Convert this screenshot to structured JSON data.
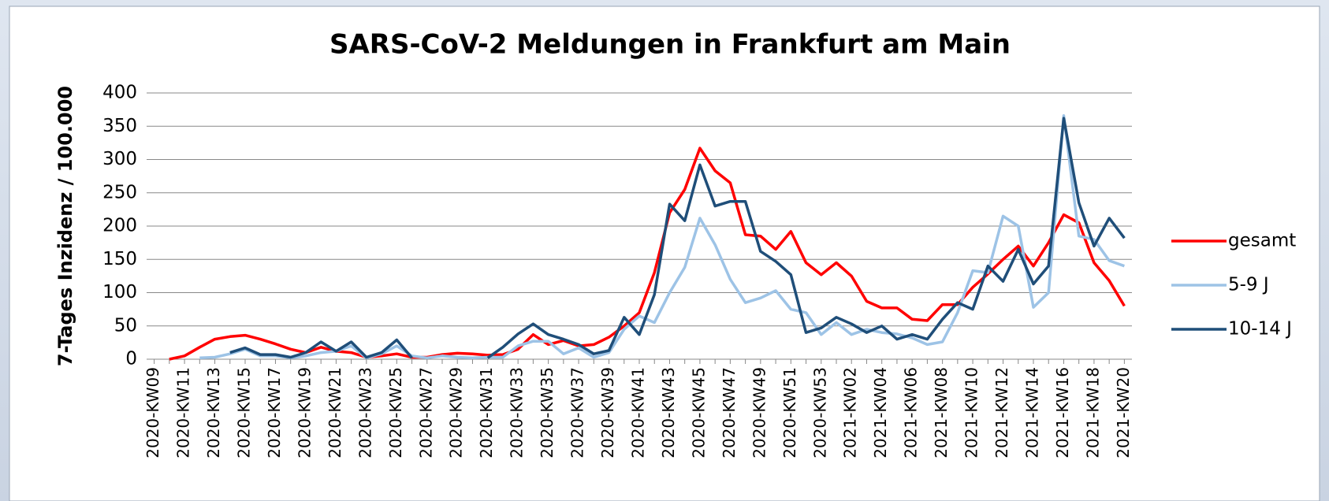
{
  "chart_data": {
    "type": "line",
    "title": "SARS-CoV-2 Meldungen in Frankfurt am Main",
    "y_label": "7-Tages Inzidenz / 100.000",
    "categories": [
      "2020-KW09",
      null,
      "2020-KW11",
      null,
      "2020-KW13",
      null,
      "2020-KW15",
      null,
      "2020-KW17",
      null,
      "2020-KW19",
      null,
      "2020-KW21",
      null,
      "2020-KW23",
      null,
      "2020-KW25",
      null,
      "2020-KW27",
      null,
      "2020-KW29",
      null,
      "2020-KW31",
      null,
      "2020-KW33",
      null,
      "2020-KW35",
      null,
      "2020-KW37",
      null,
      "2020-KW39",
      null,
      "2020-KW41",
      null,
      "2020-KW43",
      null,
      "2020-KW45",
      null,
      "2020-KW47",
      null,
      "2020-KW49",
      null,
      "2020-KW51",
      null,
      "2020-KW53",
      null,
      "2021-KW02",
      null,
      "2021-KW04",
      null,
      "2021-KW06",
      null,
      "2021-KW08",
      null,
      "2021-KW10",
      null,
      "2021-KW12",
      null,
      "2021-KW14",
      null,
      "2021-KW16",
      null,
      "2021-KW18",
      null,
      "2021-KW20"
    ],
    "series": [
      {
        "name": "gesamt",
        "color": "#ff0000",
        "values": [
          null,
          0,
          5,
          18,
          30,
          34,
          36,
          30,
          23,
          15,
          10,
          18,
          12,
          10,
          3,
          5,
          8,
          3,
          3,
          7,
          9,
          8,
          6,
          7,
          15,
          37,
          22,
          28,
          20,
          22,
          33,
          50,
          70,
          130,
          220,
          255,
          317,
          283,
          265,
          187,
          185,
          165,
          192,
          145,
          127,
          145,
          125,
          87,
          77,
          77,
          60,
          58,
          82,
          82,
          108,
          128,
          150,
          170,
          140,
          175,
          217,
          205,
          145,
          118,
          80
        ]
      },
      {
        "name": " 5-9 J",
        "color": "#9dc3e6",
        "values": [
          null,
          null,
          null,
          2,
          3,
          8,
          15,
          5,
          5,
          2,
          5,
          10,
          12,
          20,
          2,
          8,
          20,
          5,
          2,
          5,
          3,
          2,
          3,
          3,
          20,
          27,
          27,
          8,
          17,
          3,
          10,
          45,
          65,
          55,
          100,
          138,
          212,
          172,
          120,
          85,
          92,
          103,
          75,
          70,
          37,
          55,
          37,
          45,
          40,
          38,
          32,
          22,
          26,
          70,
          133,
          130,
          215,
          200,
          78,
          100,
          366,
          185,
          180,
          148,
          140
        ]
      },
      {
        "name": "10-14 J",
        "color": "#1f4e79",
        "values": [
          null,
          null,
          null,
          null,
          null,
          10,
          17,
          7,
          7,
          3,
          10,
          26,
          12,
          26,
          3,
          10,
          29,
          2,
          null,
          null,
          null,
          null,
          2,
          18,
          38,
          53,
          37,
          30,
          22,
          8,
          13,
          63,
          37,
          97,
          233,
          208,
          292,
          230,
          237,
          237,
          162,
          147,
          127,
          40,
          47,
          63,
          53,
          40,
          50,
          30,
          37,
          30,
          60,
          85,
          75,
          140,
          117,
          165,
          113,
          140,
          362,
          235,
          170,
          212,
          182
        ]
      }
    ],
    "ylim": [
      0,
      400
    ],
    "yticks": [
      0,
      50,
      100,
      150,
      200,
      250,
      300,
      350,
      400
    ],
    "grid": true,
    "legend": "right"
  }
}
